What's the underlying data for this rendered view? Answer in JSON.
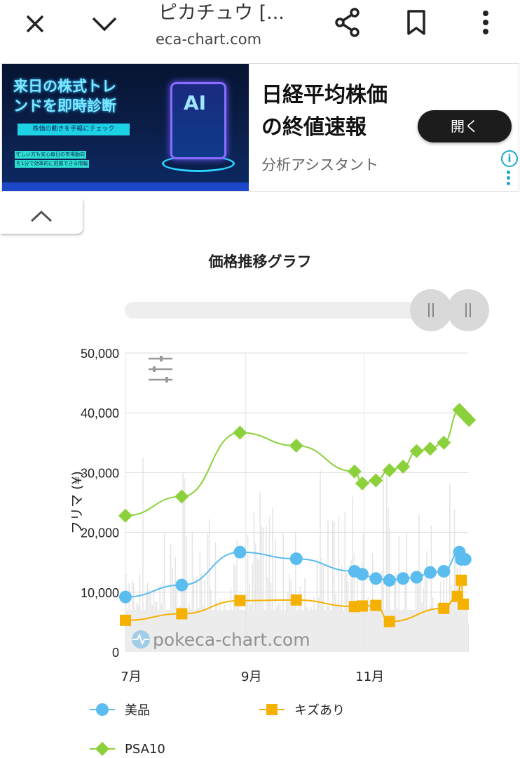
{
  "browser": {
    "title": "ピカチュウ [...",
    "url": "eca-chart.com",
    "icons": [
      "close-icon",
      "chevron-down-icon",
      "share-icon",
      "bookmark-icon",
      "more-vert-icon"
    ]
  },
  "ad": {
    "image_headline_1": "来日の株式トレ",
    "image_headline_2": "ンドを即時診断",
    "image_chip": "株価の動きを手軽にチェック",
    "image_small_1": "忙しい方も安心毎日の市場動向",
    "image_small_2": "を1分で効率的に把握できる情報",
    "image_ai": "AI",
    "headline_1": "日経平均株価",
    "headline_2": "の終値速報",
    "advertiser": "分析アシスタント",
    "open_label": "開く",
    "info_icon": "i"
  },
  "chart_data": {
    "type": "line",
    "title": "価格推移グラフ",
    "ylabel": "フリマ (¥)",
    "ylim": [
      0,
      50000
    ],
    "yticks": [
      "0",
      "10,000",
      "20,000",
      "30,000",
      "40,000",
      "50,000"
    ],
    "xticks": [
      "7月",
      "9月",
      "11月"
    ],
    "xtick_dates": [
      "07-01",
      "09-01",
      "11-01"
    ],
    "grid": true,
    "legend_position": "bottom",
    "watermark": "pokeca-chart.com",
    "series": [
      {
        "name": "美品",
        "color": "#5bbcef",
        "marker": "circle",
        "points": [
          [
            "07-01",
            9200
          ],
          [
            "07-30",
            11200
          ],
          [
            "08-29",
            16700
          ],
          [
            "09-27",
            15600
          ],
          [
            "10-27",
            13500
          ],
          [
            "10-31",
            13000
          ],
          [
            "11-07",
            12300
          ],
          [
            "11-14",
            12000
          ],
          [
            "11-21",
            12300
          ],
          [
            "11-28",
            12500
          ],
          [
            "12-05",
            13300
          ],
          [
            "12-12",
            13500
          ],
          [
            "12-20",
            16700
          ],
          [
            "12-21",
            15500
          ],
          [
            "12-23",
            15500
          ]
        ]
      },
      {
        "name": "キズあり",
        "color": "#f5b100",
        "marker": "square",
        "points": [
          [
            "07-01",
            5300
          ],
          [
            "07-30",
            6400
          ],
          [
            "08-29",
            8600
          ],
          [
            "09-27",
            8700
          ],
          [
            "10-27",
            7600
          ],
          [
            "10-31",
            7700
          ],
          [
            "11-07",
            7800
          ],
          [
            "11-14",
            5100
          ],
          [
            "12-12",
            7300
          ],
          [
            "12-19",
            9300
          ],
          [
            "12-21",
            12000
          ],
          [
            "12-22",
            8000
          ]
        ]
      },
      {
        "name": "PSA10",
        "color": "#8cd13c",
        "marker": "diamond",
        "points": [
          [
            "07-01",
            22800
          ],
          [
            "07-30",
            26000
          ],
          [
            "08-29",
            36700
          ],
          [
            "09-27",
            34500
          ],
          [
            "10-27",
            30200
          ],
          [
            "10-31",
            28200
          ],
          [
            "11-07",
            28700
          ],
          [
            "11-14",
            30400
          ],
          [
            "11-21",
            31000
          ],
          [
            "11-28",
            33600
          ],
          [
            "12-05",
            34000
          ],
          [
            "12-12",
            35000
          ],
          [
            "12-20",
            40500
          ],
          [
            "12-23",
            39500
          ],
          [
            "12-25",
            38800
          ]
        ]
      }
    ]
  }
}
